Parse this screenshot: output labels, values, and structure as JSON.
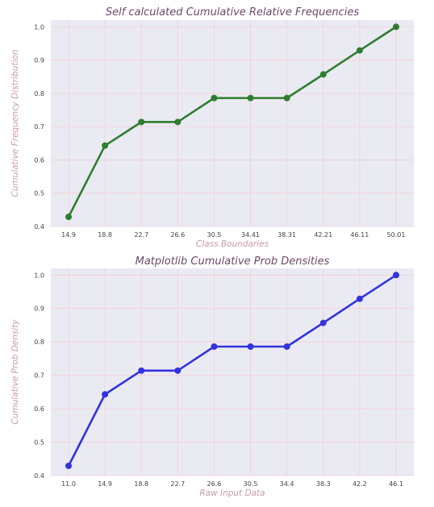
{
  "colors": {
    "background": "#ffffff",
    "plot_bg": "#eaeaf2",
    "grid": "#f2cfd7",
    "title": "#6a4a6a",
    "axis_label": "#c99aaa",
    "series_top": "#2e7d2e",
    "series_bottom": "#3333dd"
  },
  "chart_data": [
    {
      "type": "line",
      "title": "Self calculated Cumulative Relative Frequencies",
      "xlabel": "Class Boundaries",
      "ylabel": "Cumulative Frequency Distribution",
      "categories": [
        "14.9",
        "18.8",
        "22.7",
        "26.6",
        "30.5",
        "34.41",
        "38.31",
        "42.21",
        "46.11",
        "50.01"
      ],
      "series": [
        {
          "values": [
            0.429,
            0.643,
            0.714,
            0.714,
            0.786,
            0.786,
            0.786,
            0.857,
            0.929,
            1.0
          ]
        }
      ],
      "ylim": [
        0.4,
        1.02
      ],
      "yticks": [
        "0.4",
        "0.5",
        "0.6",
        "0.7",
        "0.8",
        "0.9",
        "1.0"
      ],
      "grid": true
    },
    {
      "type": "line",
      "title": "Matplotlib Cumulative Prob Densities",
      "xlabel": "Raw Input Data",
      "ylabel": "Cumulative Prob Density",
      "categories": [
        "11.0",
        "14.9",
        "18.8",
        "22.7",
        "26.6",
        "30.5",
        "34.4",
        "38.3",
        "42.2",
        "46.1"
      ],
      "series": [
        {
          "values": [
            0.429,
            0.643,
            0.714,
            0.714,
            0.786,
            0.786,
            0.786,
            0.857,
            0.929,
            1.0
          ]
        }
      ],
      "ylim": [
        0.4,
        1.02
      ],
      "yticks": [
        "0.4",
        "0.5",
        "0.6",
        "0.7",
        "0.8",
        "0.9",
        "1.0"
      ],
      "grid": true
    }
  ]
}
